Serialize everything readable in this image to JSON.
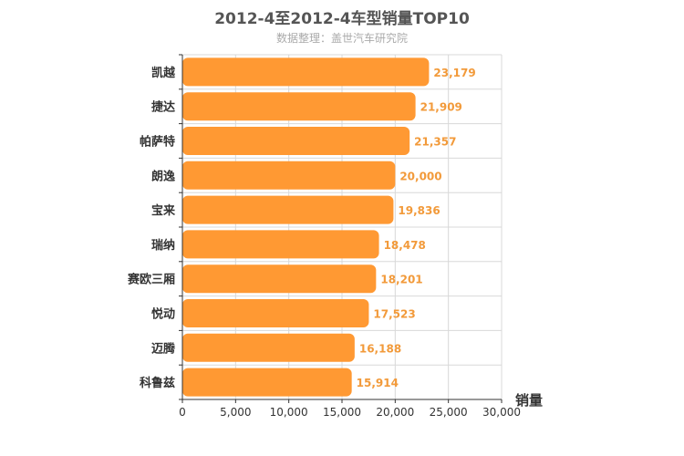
{
  "chart_data": {
    "type": "bar",
    "orientation": "horizontal",
    "title": "2012-4至2012-4车型销量TOP10",
    "subtitle": "数据整理：盖世汽车研究院",
    "unit_label": "销量",
    "categories": [
      "凯越",
      "捷达",
      "帕萨特",
      "朗逸",
      "宝来",
      "瑞纳",
      "赛欧三厢",
      "悦动",
      "迈腾",
      "科鲁兹"
    ],
    "values": [
      23179,
      21909,
      21357,
      20000,
      19836,
      18478,
      18201,
      17523,
      16188,
      15914
    ],
    "value_labels": [
      "23,179",
      "21,909",
      "21,357",
      "20,000",
      "19,836",
      "18,478",
      "18,201",
      "17,523",
      "16,188",
      "15,914"
    ],
    "xlim": [
      0,
      30000
    ],
    "xticks": [
      0,
      5000,
      10000,
      15000,
      20000,
      25000,
      30000
    ],
    "xtick_labels": [
      "0",
      "5,000",
      "10,000",
      "15,000",
      "20,000",
      "25,000",
      "30,000"
    ],
    "bar_color": "#ff9933",
    "data_label_color": "#f29a3a",
    "grid": true
  }
}
